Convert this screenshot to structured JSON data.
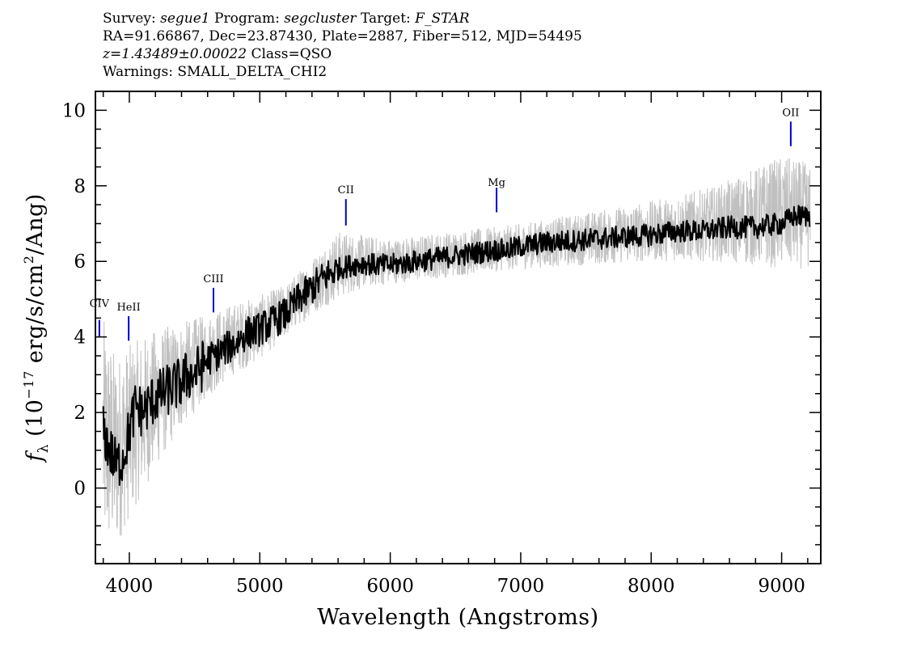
{
  "header": {
    "line1": {
      "survey_label": "Survey:",
      "survey": "segue1",
      "program_label": "Program:",
      "program": "segcluster",
      "target_label": "Target:",
      "target": "F_STAR"
    },
    "line2": "RA=91.66867, Dec=23.87430, Plate=2887, Fiber=512, MJD=54495",
    "line3": {
      "redshift": "z=1.43489±0.00022",
      "class": "Class=QSO"
    },
    "line4": "Warnings: SMALL_DELTA_CHI2"
  },
  "chart_data": {
    "type": "line",
    "xlabel": "Wavelength (Angstroms)",
    "ylabel_prefix": "f",
    "ylabel_sub": "λ",
    "ylabel_mid": "(10",
    "ylabel_exp": "−17",
    "ylabel_units": "erg/s/cm",
    "ylabel_sq": "2",
    "ylabel_end": "/Ang)",
    "xlim": [
      3740,
      9300
    ],
    "ylim": [
      -2,
      10.5
    ],
    "x_ticks": [
      4000,
      5000,
      6000,
      7000,
      8000,
      9000
    ],
    "x_tick_labels": [
      "4000",
      "5000",
      "6000",
      "7000",
      "8000",
      "9000"
    ],
    "y_ticks": [
      0,
      2,
      4,
      6,
      8,
      10
    ],
    "y_tick_labels": [
      "0",
      "2",
      "4",
      "6",
      "8",
      "10"
    ],
    "series": [
      {
        "role": "smoothed",
        "color": "#000000",
        "x": [
          3800,
          3850,
          3900,
          3950,
          4000,
          4050,
          4100,
          4200,
          4300,
          4400,
          4450,
          4500,
          4600,
          4700,
          4800,
          4900,
          5000,
          5100,
          5200,
          5300,
          5400,
          5500,
          5600,
          5700,
          5800,
          5900,
          6000,
          6100,
          6200,
          6300,
          6400,
          6500,
          6600,
          6700,
          6800,
          6900,
          7000,
          7200,
          7400,
          7600,
          7800,
          8000,
          8200,
          8400,
          8600,
          8800,
          9000,
          9100,
          9220
        ],
        "y": [
          1.5,
          1.0,
          0.6,
          0.8,
          1.5,
          2.2,
          2.0,
          2.4,
          2.6,
          2.8,
          3.0,
          3.0,
          3.4,
          3.6,
          3.8,
          4.1,
          4.2,
          4.4,
          4.6,
          5.0,
          5.3,
          5.6,
          5.8,
          5.9,
          5.95,
          5.9,
          5.9,
          5.95,
          6.0,
          6.05,
          6.1,
          6.15,
          6.2,
          6.25,
          6.3,
          6.3,
          6.4,
          6.5,
          6.55,
          6.6,
          6.65,
          6.7,
          6.8,
          6.8,
          6.9,
          6.9,
          7.0,
          7.2,
          7.2
        ]
      },
      {
        "role": "noise",
        "color": "#c0c0c0",
        "x": [
          3800,
          3900,
          4000,
          4200,
          4400,
          4600,
          4800,
          5000,
          5200,
          5400,
          5600,
          5800,
          6000,
          6500,
          7000,
          7500,
          8000,
          8500,
          9000,
          9220
        ],
        "y_low": [
          -1.8,
          -1.6,
          -0.8,
          0.5,
          1.6,
          2.4,
          3.0,
          3.4,
          4.0,
          4.6,
          5.0,
          5.3,
          5.4,
          5.6,
          5.8,
          5.9,
          6.0,
          6.0,
          5.8,
          5.8
        ],
        "y_high": [
          4.5,
          3.5,
          3.8,
          4.2,
          4.4,
          4.6,
          4.9,
          5.1,
          5.4,
          6.1,
          6.8,
          6.7,
          6.6,
          6.8,
          7.0,
          7.3,
          7.6,
          8.0,
          8.8,
          8.6
        ]
      }
    ],
    "emission_lines": [
      {
        "name": "CIV",
        "wavelength": 3770,
        "y0": 4.0,
        "y1": 4.45,
        "label_y": 4.8,
        "color": "#0000cc"
      },
      {
        "name": "HeII",
        "wavelength": 3995,
        "y0": 3.9,
        "y1": 4.55,
        "label_y": 4.7,
        "color": "#0000cc"
      },
      {
        "name": "CIII",
        "wavelength": 4645,
        "y0": 4.65,
        "y1": 5.3,
        "label_y": 5.45,
        "color": "#0000cc"
      },
      {
        "name": "CII",
        "wavelength": 5660,
        "y0": 6.95,
        "y1": 7.65,
        "label_y": 7.8,
        "color": "#0000cc"
      },
      {
        "name": "Mg",
        "wavelength": 6815,
        "y0": 7.3,
        "y1": 7.95,
        "label_y": 8.0,
        "color": "#0000cc"
      },
      {
        "name": "OII",
        "wavelength": 9070,
        "y0": 9.05,
        "y1": 9.7,
        "label_y": 9.85,
        "color": "#0000cc"
      }
    ]
  }
}
